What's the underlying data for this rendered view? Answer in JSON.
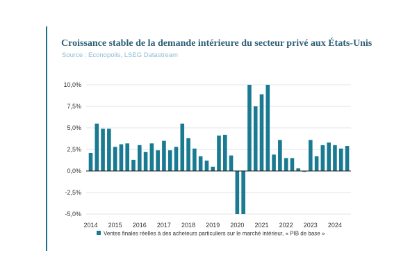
{
  "title": "Croissance stable de la demande intérieure du secteur privé aux États-Unis",
  "source": "Source : Econopolis, LSEG Datastream",
  "colors": {
    "bar": "#1a7a91",
    "title": "#2d5f78",
    "source": "#8dbbd6",
    "accent": "#1f6f8b",
    "zero_line": "#1a1a1a"
  },
  "chart_data": {
    "type": "bar",
    "title": "Croissance stable de la demande intérieure du secteur privé aux États-Unis",
    "xlabel": "",
    "ylabel": "",
    "ylim": [
      -5.0,
      10.0
    ],
    "yticks": [
      -5.0,
      -2.5,
      0.0,
      2.5,
      5.0,
      7.5,
      10.0
    ],
    "ytick_labels": [
      "-5,0%",
      "-2,5%",
      "0,0%",
      "2,5%",
      "5,0%",
      "7,5%",
      "10,0%"
    ],
    "xtick_labels": [
      "2014",
      "2015",
      "2016",
      "2017",
      "2018",
      "2019",
      "2020",
      "2021",
      "2022",
      "2023",
      "2024"
    ],
    "categories": [
      "2014 T1",
      "2014 T2",
      "2014 T3",
      "2014 T4",
      "2015 T1",
      "2015 T2",
      "2015 T3",
      "2015 T4",
      "2016 T1",
      "2016 T2",
      "2016 T3",
      "2016 T4",
      "2017 T1",
      "2017 T2",
      "2017 T3",
      "2017 T4",
      "2018 T1",
      "2018 T2",
      "2018 T3",
      "2018 T4",
      "2019 T1",
      "2019 T2",
      "2019 T3",
      "2019 T4",
      "2020 T1",
      "2020 T2",
      "2020 T3",
      "2020 T4",
      "2021 T1",
      "2021 T2",
      "2021 T3",
      "2021 T4",
      "2022 T1",
      "2022 T2",
      "2022 T3",
      "2022 T4",
      "2023 T1",
      "2023 T2",
      "2023 T3",
      "2023 T4",
      "2024 T1",
      "2024 T2",
      "2024 T3"
    ],
    "series": [
      {
        "name": "Ventes finales réelles à des acheteurs particuliers sur le marché intérieur, « PIB de base »",
        "values": [
          2.1,
          5.5,
          4.9,
          4.9,
          2.8,
          3.1,
          3.2,
          1.3,
          3.0,
          2.2,
          3.2,
          2.4,
          3.5,
          2.4,
          2.8,
          5.5,
          3.8,
          2.6,
          1.7,
          1.2,
          0.5,
          4.1,
          4.2,
          1.8,
          -5.0,
          -5.0,
          10.0,
          7.5,
          8.9,
          10.0,
          1.9,
          3.6,
          1.5,
          1.5,
          0.3,
          -0.1,
          3.6,
          1.7,
          3.0,
          3.3,
          3.0,
          2.6,
          2.9
        ]
      }
    ],
    "legend": "bottom"
  }
}
